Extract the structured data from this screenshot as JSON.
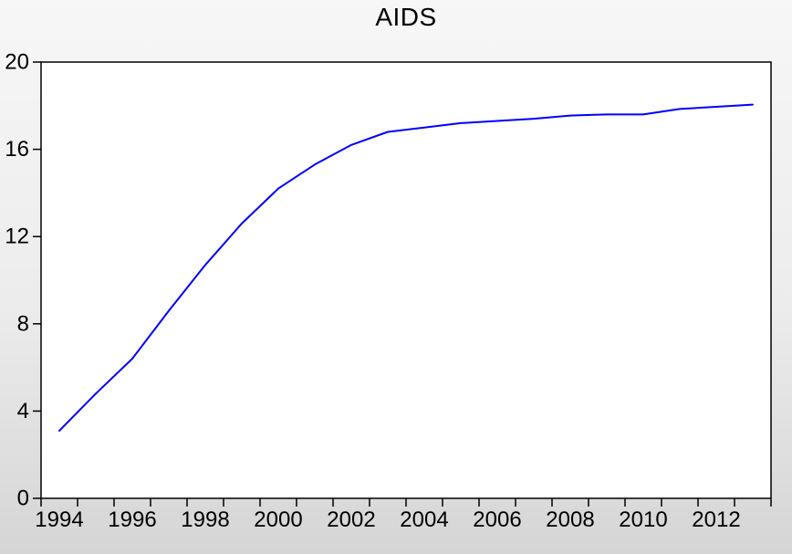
{
  "title": "AIDS",
  "colors": {
    "line": "#0000ff",
    "plot_background": "#ffffff",
    "frame": "#000000",
    "text": "#000000",
    "window_background_top": "#f7f7f7",
    "window_background_bottom": "#d5d5d5"
  },
  "chart_data": {
    "type": "line",
    "title": "AIDS",
    "x": [
      1994,
      1995,
      1996,
      1997,
      1998,
      1999,
      2000,
      2001,
      2002,
      2003,
      2004,
      2005,
      2006,
      2007,
      2008,
      2009,
      2010,
      2011,
      2012,
      2013
    ],
    "series": [
      {
        "name": "AIDS",
        "color": "#0000ff",
        "values": [
          3.1,
          4.8,
          6.4,
          8.6,
          10.7,
          12.6,
          14.2,
          15.3,
          16.2,
          16.8,
          17.0,
          17.2,
          17.3,
          17.4,
          17.55,
          17.6,
          17.6,
          17.85,
          17.95,
          18.05
        ]
      }
    ],
    "xlabel": "",
    "ylabel": "",
    "ylim": [
      0,
      20
    ],
    "yticks": [
      0,
      4,
      8,
      12,
      16,
      20
    ],
    "xtick_labels": [
      "1994",
      "1996",
      "1998",
      "2000",
      "2002",
      "2004",
      "2006",
      "2008",
      "2010",
      "2012"
    ],
    "xtick_label_years": [
      1994,
      1996,
      1998,
      2000,
      2002,
      2004,
      2006,
      2008,
      2010,
      2012
    ],
    "minor_xticks_every_year": true,
    "grid": false,
    "legend": "none"
  }
}
